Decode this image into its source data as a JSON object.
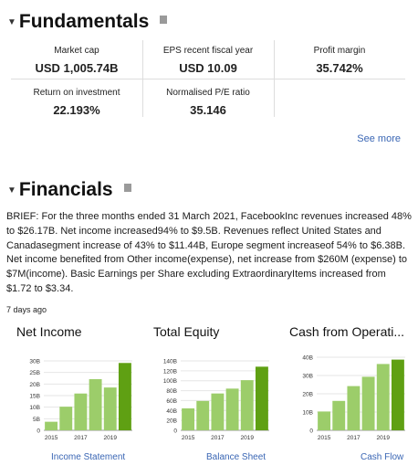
{
  "fundamentals": {
    "title": "Fundamentals",
    "metrics": [
      {
        "label": "Market cap",
        "value": "USD 1,005.74B"
      },
      {
        "label": "EPS recent fiscal year",
        "value": "USD 10.09"
      },
      {
        "label": "Profit margin",
        "value": "35.742%"
      },
      {
        "label": "Return on investment",
        "value": "22.193%"
      },
      {
        "label": "Normalised P/E ratio",
        "value": "35.146"
      }
    ],
    "see_more": "See more"
  },
  "financials": {
    "title": "Financials",
    "brief": "BRIEF: For the three months ended 31 March 2021, FacebookInc revenues increased 48% to $26.17B. Net income increased94% to $9.5B. Revenues reflect United States and Canadasegment increase of 43% to $11.44B, Europe segment increaseof 54% to $6.38B. Net income benefited from Other income(expense), net increase from $260M (expense) to $7M(income). Basic Earnings per Share excluding ExtraordinaryItems increased from $1.72 to $3.34.",
    "age": "7 days ago"
  },
  "colors": {
    "bar": "#9ccd6a",
    "bar_latest": "#5fa013",
    "link": "#3a66b4"
  },
  "chart_data": [
    {
      "type": "bar",
      "title": "Net Income",
      "link": "Income Statement",
      "categories": [
        "2015",
        "2016",
        "2017",
        "2018",
        "2019",
        "2020"
      ],
      "x_tick_labels": [
        "2015",
        "2017",
        "2019"
      ],
      "values": [
        3.7,
        10.2,
        15.9,
        22.1,
        18.5,
        29.1
      ],
      "ylim": [
        0,
        30
      ],
      "y_ticks": [
        0,
        5,
        10,
        15,
        20,
        25,
        30
      ],
      "y_tick_labels": [
        "0",
        "5B",
        "10B",
        "15B",
        "20B",
        "25B",
        "30B"
      ]
    },
    {
      "type": "bar",
      "title": "Total Equity",
      "link": "Balance Sheet",
      "categories": [
        "2015",
        "2016",
        "2017",
        "2018",
        "2019",
        "2020"
      ],
      "x_tick_labels": [
        "2015",
        "2017",
        "2019"
      ],
      "values": [
        44.2,
        59.2,
        74.3,
        84.1,
        101.1,
        128.3
      ],
      "ylim": [
        0,
        140
      ],
      "y_ticks": [
        0,
        20,
        40,
        60,
        80,
        100,
        120,
        140
      ],
      "y_tick_labels": [
        "0",
        "20B",
        "40B",
        "60B",
        "80B",
        "100B",
        "120B",
        "140B"
      ]
    },
    {
      "type": "bar",
      "title": "Cash from Operati...",
      "link": "Cash Flow",
      "categories": [
        "2015",
        "2016",
        "2017",
        "2018",
        "2019",
        "2020"
      ],
      "x_tick_labels": [
        "2015",
        "2017",
        "2019"
      ],
      "values": [
        10.3,
        16.1,
        24.2,
        29.3,
        36.3,
        38.7
      ],
      "ylim": [
        0,
        40
      ],
      "y_ticks": [
        0,
        10,
        20,
        30,
        40
      ],
      "y_tick_labels": [
        "0",
        "10B",
        "20B",
        "30B",
        "40B"
      ]
    }
  ]
}
